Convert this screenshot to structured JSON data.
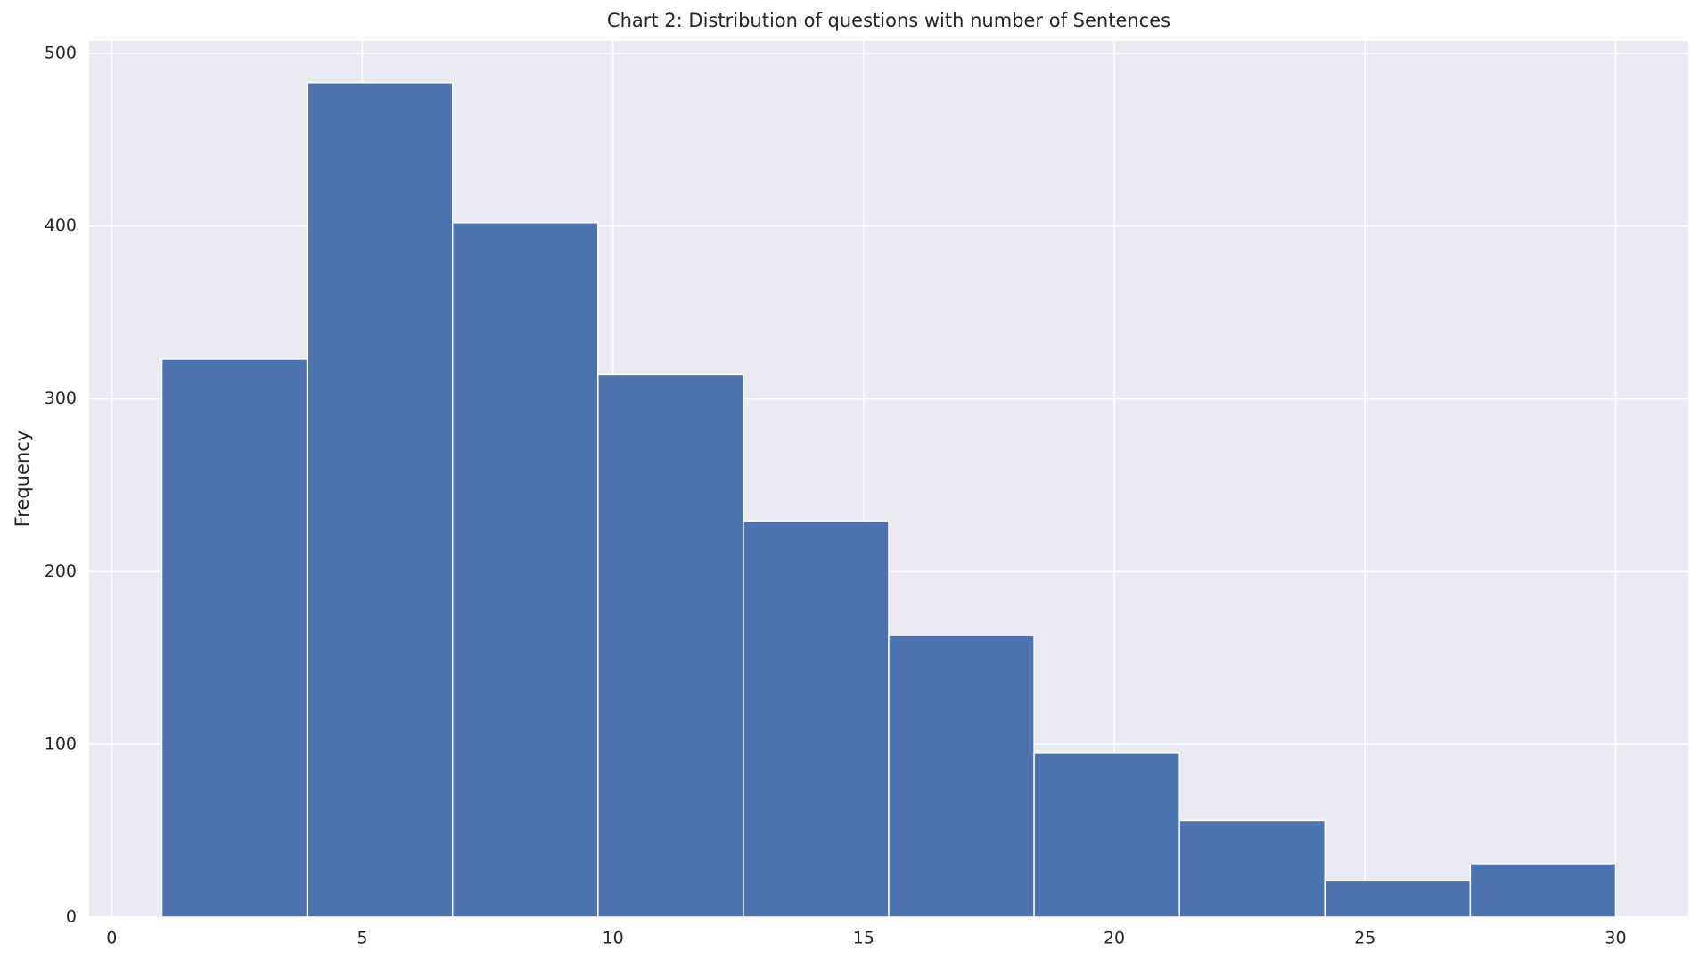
{
  "chart_data": {
    "type": "histogram",
    "title": "Chart 2: Distribution of questions with number of Sentences",
    "y_label": "Frequency",
    "bins": [
      1,
      3.9,
      6.8,
      9.7,
      12.6,
      15.5,
      18.4,
      21.3,
      24.2,
      27.1,
      30
    ],
    "values": [
      323,
      483,
      402,
      314,
      229,
      163,
      95,
      56,
      21,
      31
    ],
    "color": "#4c72b0",
    "xlim": [
      -0.45,
      31.45
    ],
    "xticks": [
      0,
      5,
      10,
      15,
      20,
      25,
      30
    ],
    "ylim": [
      0,
      507.15
    ],
    "yticks": [
      0,
      100,
      200,
      300,
      400,
      500
    ],
    "grid": true
  }
}
